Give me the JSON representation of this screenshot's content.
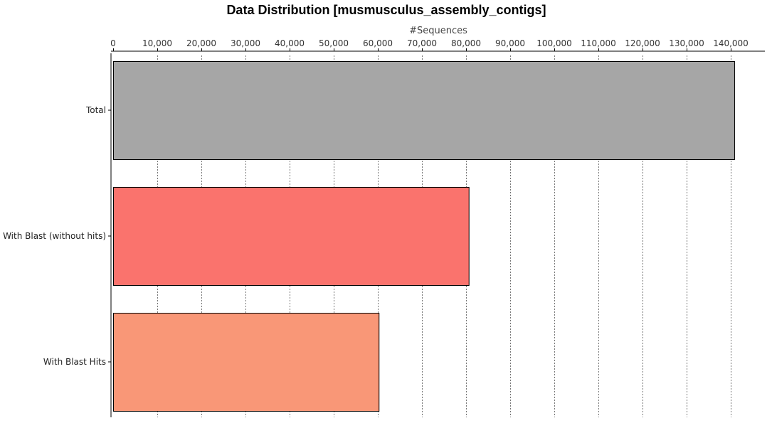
{
  "chart_data": {
    "type": "bar",
    "orientation": "horizontal",
    "title": "Data Distribution [musmusculus_assembly_contigs]",
    "xlabel": "#Sequences",
    "ylabel": "",
    "xlim": [
      0,
      145000
    ],
    "ticks": [
      0,
      10000,
      20000,
      30000,
      40000,
      50000,
      60000,
      70000,
      80000,
      90000,
      100000,
      110000,
      120000,
      130000,
      140000
    ],
    "tick_labels": [
      "0",
      "10,000",
      "20,000",
      "30,000",
      "40,000",
      "50,000",
      "60,000",
      "70,000",
      "80,000",
      "90,000",
      "100,000",
      "110,000",
      "120,000",
      "130,000",
      "140,000"
    ],
    "grid": "vertical dashed",
    "categories": [
      "Total",
      "With Blast (without hits)",
      "With Blast Hits"
    ],
    "values": [
      140800,
      80600,
      60200
    ],
    "colors": [
      "#a6a6a6",
      "#fa736d",
      "#f99777"
    ]
  }
}
